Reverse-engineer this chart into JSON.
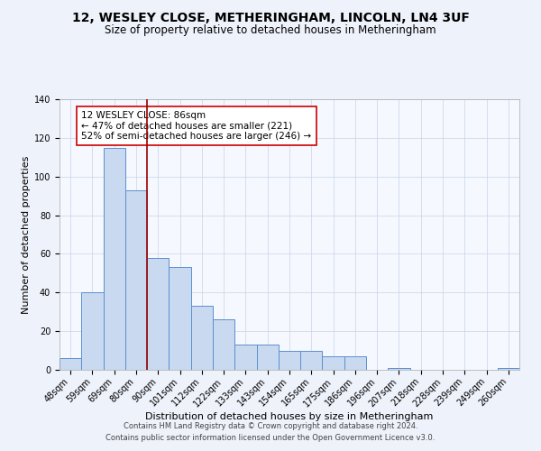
{
  "title": "12, WESLEY CLOSE, METHERINGHAM, LINCOLN, LN4 3UF",
  "subtitle": "Size of property relative to detached houses in Metheringham",
  "xlabel": "Distribution of detached houses by size in Metheringham",
  "ylabel": "Number of detached properties",
  "categories": [
    "48sqm",
    "59sqm",
    "69sqm",
    "80sqm",
    "90sqm",
    "101sqm",
    "112sqm",
    "122sqm",
    "133sqm",
    "143sqm",
    "154sqm",
    "165sqm",
    "175sqm",
    "186sqm",
    "196sqm",
    "207sqm",
    "218sqm",
    "228sqm",
    "239sqm",
    "249sqm",
    "260sqm"
  ],
  "values": [
    6,
    40,
    115,
    93,
    58,
    53,
    33,
    26,
    13,
    13,
    10,
    10,
    7,
    7,
    0,
    1,
    0,
    0,
    0,
    0,
    1
  ],
  "bar_color": "#c9d9f0",
  "bar_edge_color": "#5b8fcf",
  "ylim": [
    0,
    140
  ],
  "yticks": [
    0,
    20,
    40,
    60,
    80,
    100,
    120,
    140
  ],
  "property_line_color": "#990000",
  "annotation_text": "12 WESLEY CLOSE: 86sqm\n← 47% of detached houses are smaller (221)\n52% of semi-detached houses are larger (246) →",
  "annotation_box_color": "#ffffff",
  "annotation_box_edge_color": "#cc0000",
  "footer_line1": "Contains HM Land Registry data © Crown copyright and database right 2024.",
  "footer_line2": "Contains public sector information licensed under the Open Government Licence v3.0.",
  "background_color": "#eef2fb",
  "plot_bg_color": "#f5f8ff",
  "title_fontsize": 10,
  "subtitle_fontsize": 8.5,
  "axis_label_fontsize": 8,
  "tick_fontsize": 7,
  "annotation_fontsize": 7.5,
  "footer_fontsize": 6
}
